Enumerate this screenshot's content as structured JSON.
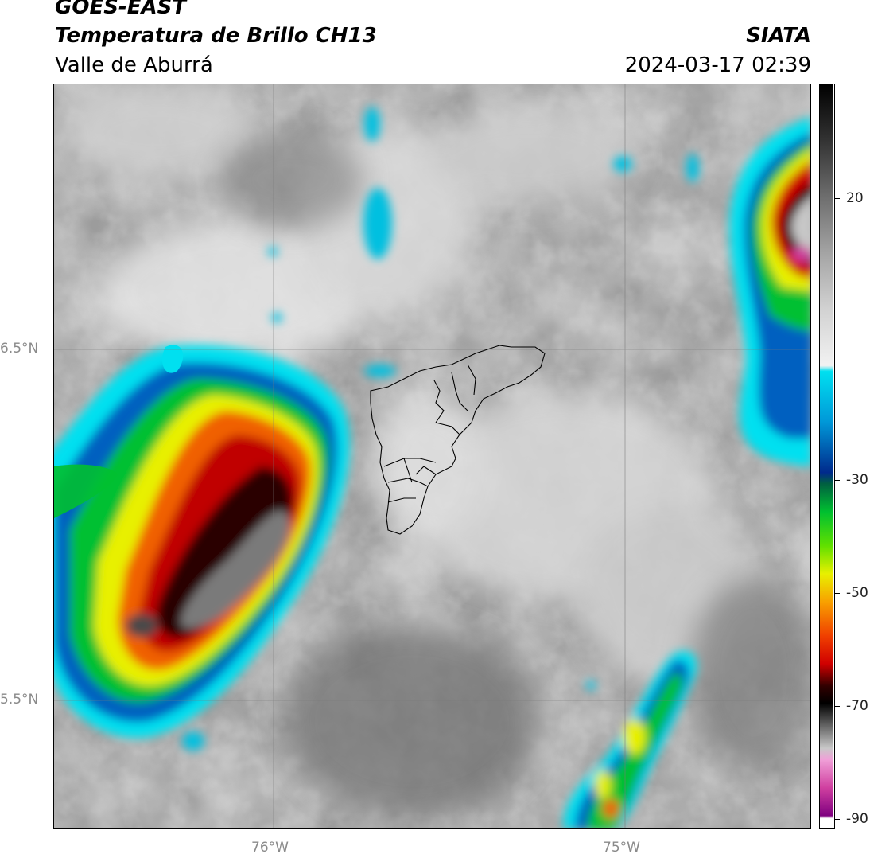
{
  "header": {
    "line1": "GOES-EAST",
    "line2": "Temperatura de Brillo CH13",
    "region": "Valle de Aburrá",
    "agency": "SIATA",
    "timestamp": "2024-03-17 02:39"
  },
  "axes": {
    "lat_ticks": [
      "6.5°N",
      "5.5°N"
    ],
    "lon_ticks": [
      "76°W",
      "75°W"
    ]
  },
  "colorbar": {
    "ticks": [
      "20",
      "-30",
      "-50",
      "-70",
      "-90"
    ],
    "range": [
      -92,
      40
    ],
    "stops": [
      {
        "value": 40,
        "color": "#000000"
      },
      {
        "value": 30,
        "color": "#333333"
      },
      {
        "value": 20,
        "color": "#6e6e6e"
      },
      {
        "value": 10,
        "color": "#a4a4a4"
      },
      {
        "value": 0,
        "color": "#d2d2d2"
      },
      {
        "value": -10,
        "color": "#f2f2f2"
      },
      {
        "value": -11,
        "color": "#00e0f0"
      },
      {
        "value": -20,
        "color": "#0098d8"
      },
      {
        "value": -29,
        "color": "#002a8c"
      },
      {
        "value": -31,
        "color": "#006040"
      },
      {
        "value": -36,
        "color": "#00c030"
      },
      {
        "value": -42,
        "color": "#60e000"
      },
      {
        "value": -47,
        "color": "#e8f000"
      },
      {
        "value": -52,
        "color": "#f8a000"
      },
      {
        "value": -58,
        "color": "#f04000"
      },
      {
        "value": -63,
        "color": "#d00000"
      },
      {
        "value": -67,
        "color": "#300000"
      },
      {
        "value": -70,
        "color": "#000000"
      },
      {
        "value": -78,
        "color": "#c8c8c8"
      },
      {
        "value": -80,
        "color": "#f0a0d8"
      },
      {
        "value": -85,
        "color": "#d040a0"
      },
      {
        "value": -90,
        "color": "#800080"
      },
      {
        "value": -90.5,
        "color": "#ffffff"
      },
      {
        "value": -92,
        "color": "#ffffff"
      }
    ]
  }
}
